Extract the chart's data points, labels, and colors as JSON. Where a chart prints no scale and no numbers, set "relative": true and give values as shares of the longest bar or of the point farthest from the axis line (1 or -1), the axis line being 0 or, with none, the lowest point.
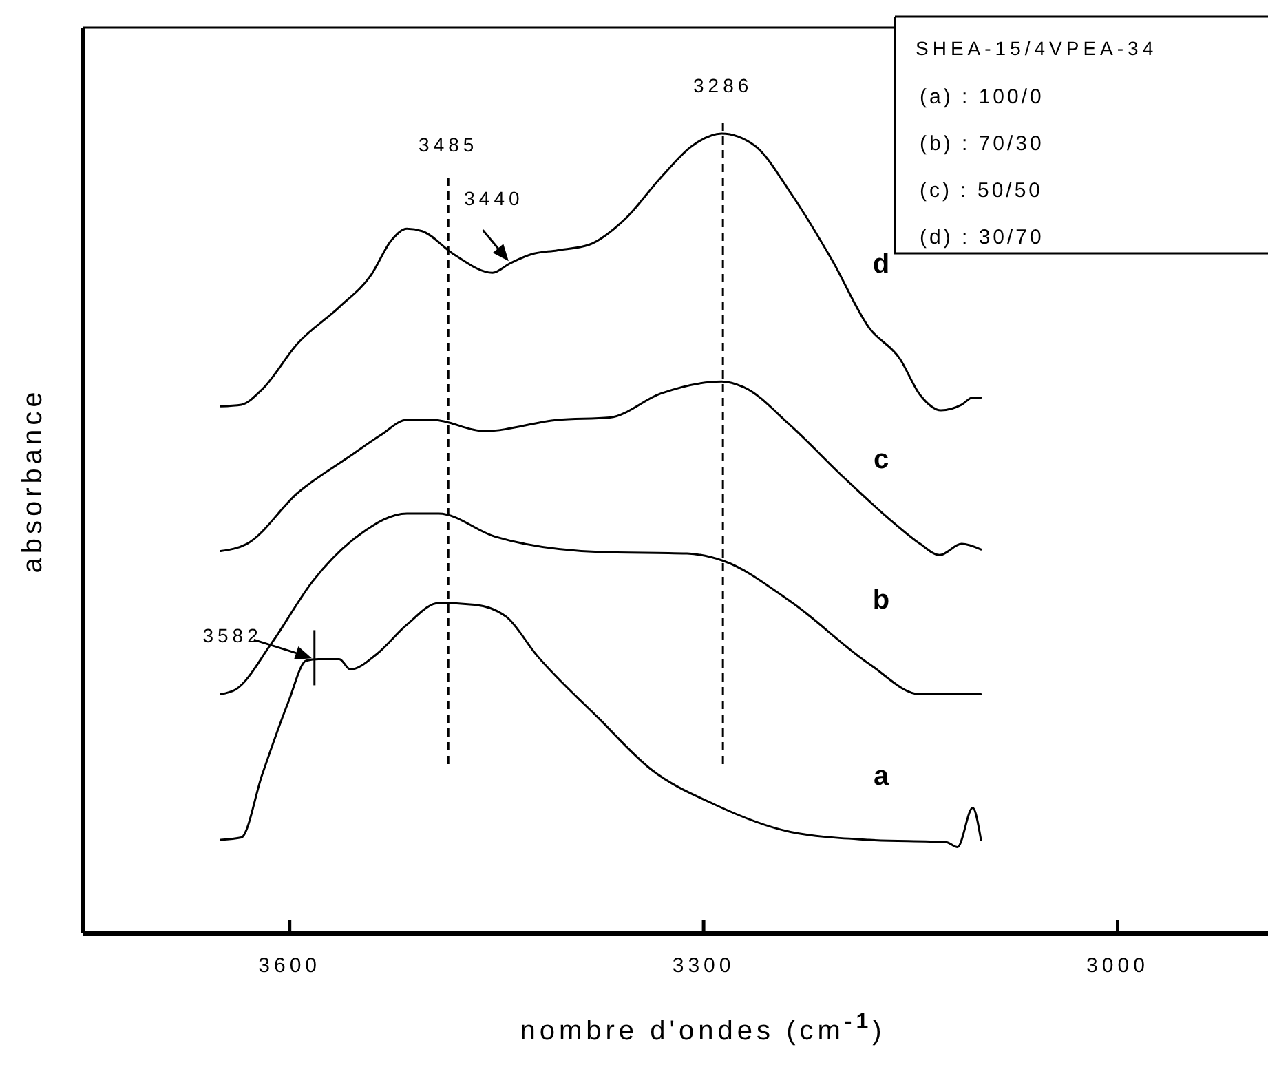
{
  "chart_data": {
    "type": "line",
    "relative": true,
    "xlabel": "nombre d'ondes (cm$^{-1}$)",
    "ylabel": "absorbance",
    "xlim": [
      3750,
      2891
    ],
    "xticks": [
      3600,
      3300,
      3000
    ],
    "tick_labels": "x",
    "grid": false,
    "legend": false,
    "marker": "none",
    "line_style": "solid",
    "legend_title": "SHEA-15/4VPEA-34",
    "series": [
      {
        "name": "a",
        "color": "#000000",
        "x": [
          3650,
          3635,
          3620,
          3601,
          3588,
          3579,
          3564,
          3556,
          3537,
          3515,
          3492,
          3466,
          3443,
          3421,
          3376,
          3338,
          3293,
          3237,
          3180,
          3124,
          3116,
          3105,
          3099
        ],
        "values": [
          0.117,
          0.12,
          0.198,
          0.289,
          0.341,
          0.343,
          0.343,
          0.33,
          0.349,
          0.386,
          0.413,
          0.411,
          0.396,
          0.348,
          0.269,
          0.205,
          0.162,
          0.127,
          0.117,
          0.114,
          0.108,
          0.157,
          0.117
        ]
      },
      {
        "name": "b",
        "color": "#000000",
        "x": [
          3650,
          3639,
          3613,
          3583,
          3549,
          3515,
          3492,
          3451,
          3376,
          3312,
          3286,
          3237,
          3180,
          3143,
          3099
        ],
        "values": [
          0.299,
          0.305,
          0.363,
          0.441,
          0.499,
          0.525,
          0.525,
          0.496,
          0.477,
          0.475,
          0.466,
          0.415,
          0.337,
          0.299,
          0.299
        ]
      },
      {
        "name": "c",
        "color": "#000000",
        "x": [
          3650,
          3631,
          3594,
          3556,
          3534,
          3515,
          3496,
          3459,
          3406,
          3368,
          3331,
          3287,
          3271,
          3237,
          3199,
          3162,
          3143,
          3129,
          3113,
          3099
        ],
        "values": [
          0.478,
          0.487,
          0.551,
          0.597,
          0.623,
          0.642,
          0.642,
          0.628,
          0.642,
          0.645,
          0.675,
          0.69,
          0.683,
          0.635,
          0.571,
          0.513,
          0.487,
          0.473,
          0.487,
          0.48
        ]
      },
      {
        "name": "d",
        "color": "#000000",
        "x": [
          3650,
          3635,
          3620,
          3594,
          3564,
          3541,
          3526,
          3515,
          3504,
          3481,
          3453,
          3440,
          3425,
          3406,
          3383,
          3357,
          3331,
          3308,
          3287,
          3263,
          3237,
          3207,
          3180,
          3158,
          3143,
          3128,
          3113,
          3105,
          3099
        ],
        "values": [
          0.659,
          0.661,
          0.68,
          0.738,
          0.783,
          0.823,
          0.867,
          0.881,
          0.878,
          0.849,
          0.826,
          0.838,
          0.849,
          0.854,
          0.861,
          0.893,
          0.945,
          0.985,
          1.0,
          0.985,
          0.926,
          0.842,
          0.757,
          0.719,
          0.673,
          0.654,
          0.661,
          0.67,
          0.67
        ]
      }
    ],
    "ref_lines": [
      {
        "axis": "x",
        "value": 3485,
        "label": "3485",
        "line_style": "dashed"
      },
      {
        "axis": "x",
        "value": 3286,
        "label": "3286",
        "line_style": "dashed"
      }
    ],
    "annotations": [
      {
        "text": "3440",
        "x": 3440,
        "y": 0.838
      },
      {
        "text": "3582",
        "x": 3582,
        "y": 0.343
      },
      "(a) : 100/0",
      "(b) : 70/30",
      "(c) : 50/50",
      "(d) : 30/70"
    ]
  }
}
